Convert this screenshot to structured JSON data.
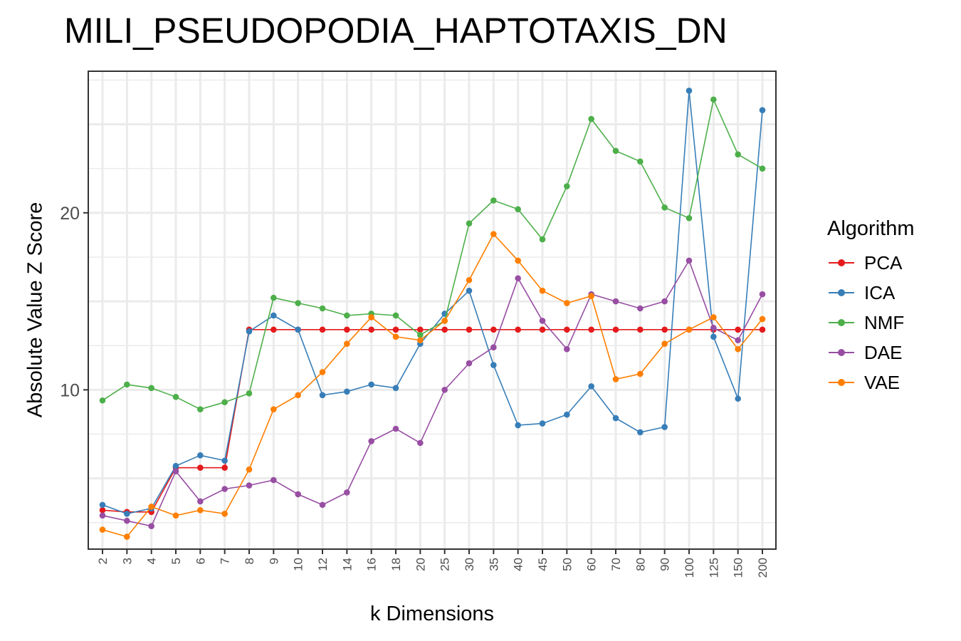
{
  "chart_data": {
    "type": "line",
    "title": "MILI_PSEUDOPODIA_HAPTOTAXIS_DN",
    "xlabel": "k Dimensions",
    "ylabel": "Absolute Value Z Score",
    "categories": [
      "2",
      "3",
      "4",
      "5",
      "6",
      "7",
      "8",
      "9",
      "10",
      "12",
      "14",
      "16",
      "18",
      "20",
      "25",
      "30",
      "35",
      "40",
      "45",
      "50",
      "60",
      "70",
      "80",
      "90",
      "100",
      "125",
      "150",
      "200"
    ],
    "ylim": [
      1.0,
      28.0
    ],
    "yticks": [
      10,
      20
    ],
    "grid": true,
    "legend_title": "Algorithm",
    "legend_position": "right",
    "series": [
      {
        "name": "PCA",
        "color": "#E41A1C",
        "values": [
          3.2,
          3.1,
          3.1,
          5.6,
          5.6,
          5.6,
          13.4,
          13.4,
          13.4,
          13.4,
          13.4,
          13.4,
          13.4,
          13.4,
          13.4,
          13.4,
          13.4,
          13.4,
          13.4,
          13.4,
          13.4,
          13.4,
          13.4,
          13.4,
          13.4,
          13.4,
          13.4,
          13.4
        ]
      },
      {
        "name": "ICA",
        "color": "#377EB8",
        "values": [
          3.5,
          3.0,
          3.3,
          5.7,
          6.3,
          6.0,
          13.3,
          14.2,
          13.4,
          9.7,
          9.9,
          10.3,
          10.1,
          12.6,
          14.3,
          15.6,
          11.4,
          8.0,
          8.1,
          8.6,
          10.2,
          8.4,
          7.6,
          7.9,
          26.9,
          13.0,
          9.5,
          25.8
        ]
      },
      {
        "name": "NMF",
        "color": "#4DAF4A",
        "values": [
          9.4,
          10.3,
          10.1,
          9.6,
          8.9,
          9.3,
          9.8,
          15.2,
          14.9,
          14.6,
          14.2,
          14.3,
          14.2,
          13.1,
          13.9,
          19.4,
          20.7,
          20.2,
          18.5,
          21.5,
          25.3,
          23.5,
          22.9,
          20.3,
          19.7,
          26.4,
          23.3,
          22.5
        ]
      },
      {
        "name": "DAE",
        "color": "#984EA3",
        "values": [
          2.9,
          2.6,
          2.3,
          5.4,
          3.7,
          4.4,
          4.6,
          4.9,
          4.1,
          3.5,
          4.2,
          7.1,
          7.8,
          7.0,
          10.0,
          11.5,
          12.4,
          16.3,
          13.9,
          12.3,
          15.4,
          15.0,
          14.6,
          15.0,
          17.3,
          13.5,
          12.8,
          15.4
        ]
      },
      {
        "name": "VAE",
        "color": "#FF7F00",
        "values": [
          2.1,
          1.7,
          3.4,
          2.9,
          3.2,
          3.0,
          5.5,
          8.9,
          9.7,
          11.0,
          12.6,
          14.1,
          13.0,
          12.8,
          13.9,
          16.2,
          18.8,
          17.3,
          15.6,
          14.9,
          15.3,
          10.6,
          10.9,
          12.6,
          13.4,
          14.1,
          12.3,
          14.0
        ]
      }
    ]
  }
}
